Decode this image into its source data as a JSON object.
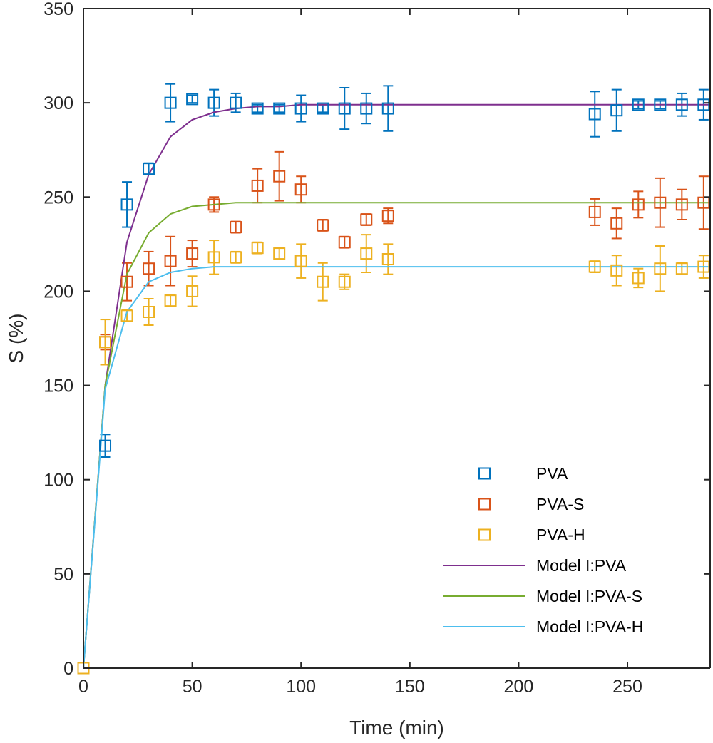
{
  "chart_data": {
    "type": "scatter",
    "xlabel": "Time (min)",
    "ylabel": "S (%)",
    "xlim": [
      0,
      288
    ],
    "ylim": [
      0,
      350
    ],
    "x_ticks": [
      0,
      50,
      100,
      150,
      200,
      250
    ],
    "y_ticks": [
      0,
      50,
      100,
      150,
      200,
      250,
      300,
      350
    ],
    "grid": false,
    "legend_position": "bottom-right",
    "series": [
      {
        "name": "PVA",
        "kind": "markers",
        "marker": "square",
        "color": "#0072BD",
        "points": [
          {
            "x": 0,
            "y": 0,
            "err": 0
          },
          {
            "x": 10,
            "y": 118,
            "err": 6
          },
          {
            "x": 20,
            "y": 246,
            "err": 12
          },
          {
            "x": 30,
            "y": 265,
            "err": 3
          },
          {
            "x": 40,
            "y": 300,
            "err": 10
          },
          {
            "x": 50,
            "y": 302,
            "err": 2
          },
          {
            "x": 60,
            "y": 300,
            "err": 7
          },
          {
            "x": 70,
            "y": 300,
            "err": 5
          },
          {
            "x": 80,
            "y": 297,
            "err": 2
          },
          {
            "x": 90,
            "y": 297,
            "err": 2
          },
          {
            "x": 100,
            "y": 297,
            "err": 7
          },
          {
            "x": 110,
            "y": 297,
            "err": 2
          },
          {
            "x": 120,
            "y": 297,
            "err": 11
          },
          {
            "x": 130,
            "y": 297,
            "err": 8
          },
          {
            "x": 140,
            "y": 297,
            "err": 12
          },
          {
            "x": 235,
            "y": 294,
            "err": 12
          },
          {
            "x": 245,
            "y": 296,
            "err": 11
          },
          {
            "x": 255,
            "y": 299,
            "err": 2
          },
          {
            "x": 265,
            "y": 299,
            "err": 2
          },
          {
            "x": 275,
            "y": 299,
            "err": 6
          },
          {
            "x": 285,
            "y": 299,
            "err": 8
          }
        ]
      },
      {
        "name": "PVA-S",
        "kind": "markers",
        "marker": "square",
        "color": "#D95319",
        "points": [
          {
            "x": 0,
            "y": 0,
            "err": 0
          },
          {
            "x": 10,
            "y": 173,
            "err": 4
          },
          {
            "x": 20,
            "y": 205,
            "err": 10
          },
          {
            "x": 30,
            "y": 212,
            "err": 9
          },
          {
            "x": 40,
            "y": 216,
            "err": 13
          },
          {
            "x": 50,
            "y": 220,
            "err": 7
          },
          {
            "x": 60,
            "y": 246,
            "err": 4
          },
          {
            "x": 70,
            "y": 234,
            "err": 3
          },
          {
            "x": 80,
            "y": 256,
            "err": 9
          },
          {
            "x": 90,
            "y": 261,
            "err": 13
          },
          {
            "x": 100,
            "y": 254,
            "err": 7
          },
          {
            "x": 110,
            "y": 235,
            "err": 3
          },
          {
            "x": 120,
            "y": 226,
            "err": 3
          },
          {
            "x": 130,
            "y": 238,
            "err": 3
          },
          {
            "x": 140,
            "y": 240,
            "err": 4
          },
          {
            "x": 235,
            "y": 242,
            "err": 7
          },
          {
            "x": 245,
            "y": 236,
            "err": 8
          },
          {
            "x": 255,
            "y": 246,
            "err": 7
          },
          {
            "x": 265,
            "y": 247,
            "err": 13
          },
          {
            "x": 275,
            "y": 246,
            "err": 8
          },
          {
            "x": 285,
            "y": 247,
            "err": 14
          }
        ]
      },
      {
        "name": "PVA-H",
        "kind": "markers",
        "marker": "square",
        "color": "#EDB120",
        "points": [
          {
            "x": 0,
            "y": 0,
            "err": 0
          },
          {
            "x": 10,
            "y": 173,
            "err": 12
          },
          {
            "x": 20,
            "y": 187,
            "err": 3
          },
          {
            "x": 30,
            "y": 189,
            "err": 7
          },
          {
            "x": 40,
            "y": 195,
            "err": 3
          },
          {
            "x": 50,
            "y": 200,
            "err": 8
          },
          {
            "x": 60,
            "y": 218,
            "err": 9
          },
          {
            "x": 70,
            "y": 218,
            "err": 3
          },
          {
            "x": 80,
            "y": 223,
            "err": 3
          },
          {
            "x": 90,
            "y": 220,
            "err": 3
          },
          {
            "x": 100,
            "y": 216,
            "err": 9
          },
          {
            "x": 110,
            "y": 205,
            "err": 10
          },
          {
            "x": 120,
            "y": 205,
            "err": 4
          },
          {
            "x": 130,
            "y": 220,
            "err": 10
          },
          {
            "x": 140,
            "y": 217,
            "err": 8
          },
          {
            "x": 235,
            "y": 213,
            "err": 3
          },
          {
            "x": 245,
            "y": 211,
            "err": 8
          },
          {
            "x": 255,
            "y": 207,
            "err": 5
          },
          {
            "x": 265,
            "y": 212,
            "err": 12
          },
          {
            "x": 275,
            "y": 212,
            "err": 3
          },
          {
            "x": 285,
            "y": 213,
            "err": 6
          }
        ]
      },
      {
        "name": "Model I:PVA",
        "kind": "line",
        "color": "#7E2F8E",
        "x": [
          0,
          10,
          20,
          30,
          40,
          50,
          60,
          70,
          80,
          90,
          100,
          150,
          200,
          250,
          288
        ],
        "y": [
          0,
          150,
          226,
          262,
          282,
          291,
          295,
          297,
          298,
          298,
          299,
          299,
          299,
          299,
          299
        ]
      },
      {
        "name": "Model I:PVA-S",
        "kind": "line",
        "color": "#77AC30",
        "x": [
          0,
          10,
          20,
          30,
          40,
          50,
          60,
          70,
          80,
          100,
          150,
          200,
          250,
          288
        ],
        "y": [
          0,
          150,
          209,
          231,
          241,
          245,
          246,
          247,
          247,
          247,
          247,
          247,
          247,
          247
        ]
      },
      {
        "name": "Model I:PVA-H",
        "kind": "line",
        "color": "#4DBEEE",
        "x": [
          0,
          10,
          20,
          30,
          40,
          50,
          60,
          80,
          100,
          150,
          200,
          250,
          288
        ],
        "y": [
          0,
          148,
          189,
          205,
          210,
          212,
          213,
          213,
          213,
          213,
          213,
          213,
          213
        ]
      }
    ]
  }
}
